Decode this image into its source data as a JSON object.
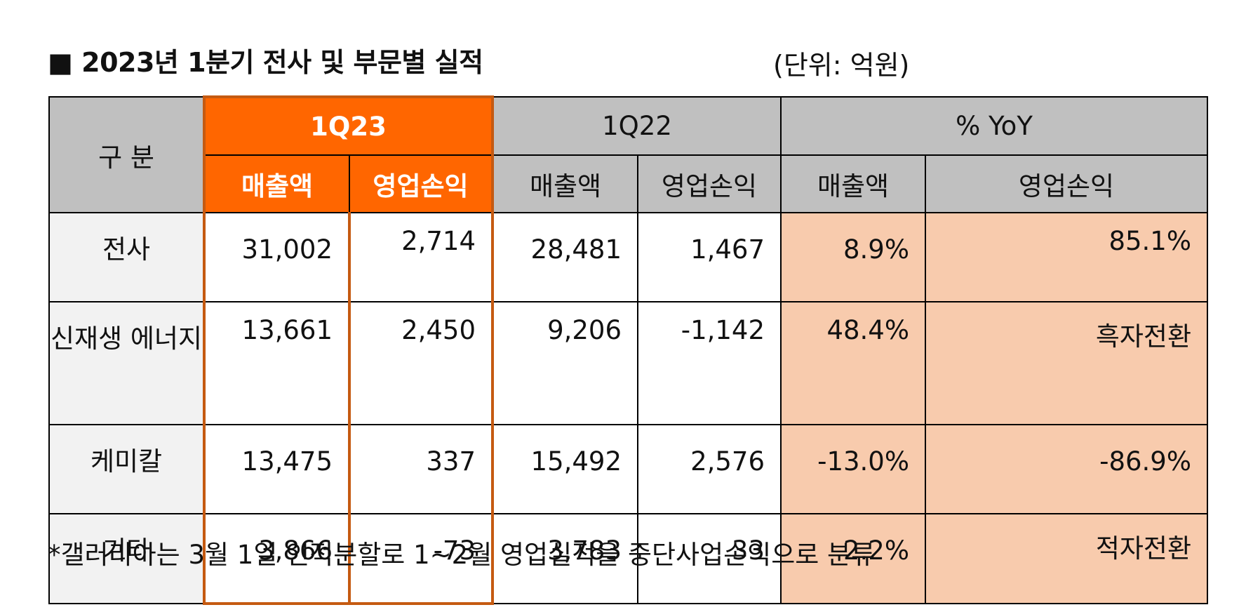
{
  "title": "■ 2023년 1분기 전사 및 부문별 실적",
  "unit": "(단위: 억원)",
  "table": {
    "corner": "구 분",
    "groups": [
      "1Q23",
      "1Q22",
      "% YoY"
    ],
    "subheaders": [
      "매출액",
      "영업손익",
      "매출액",
      "영업손익",
      "매출액",
      "영업손익"
    ],
    "rows": [
      {
        "label": "전사",
        "cells": [
          "31,002",
          "2,714",
          "28,481",
          "1,467",
          "8.9%",
          "85.1%"
        ]
      },
      {
        "label": "신재생 에너지",
        "cells": [
          "13,661",
          "2,450",
          "9,206",
          "-1,142",
          "48.4%",
          "흑자전환"
        ]
      },
      {
        "label": "케미칼",
        "cells": [
          "13,475",
          "337",
          "15,492",
          "2,576",
          "-13.0%",
          "-86.9%"
        ]
      },
      {
        "label": "기타",
        "cells": [
          "3,866",
          "-73",
          "3,783",
          "33",
          "2.2%",
          "적자전환"
        ]
      }
    ]
  },
  "footnote": "*갤러리아는 3월 1일 인적분할로 1~2월 영업실적을 중단사업손익으로 분류",
  "colors": {
    "highlight": "#ff6600",
    "highlight_border": "#c55a11",
    "header_gray": "#c0c0c0",
    "yoy_fill": "#f8cbad"
  }
}
